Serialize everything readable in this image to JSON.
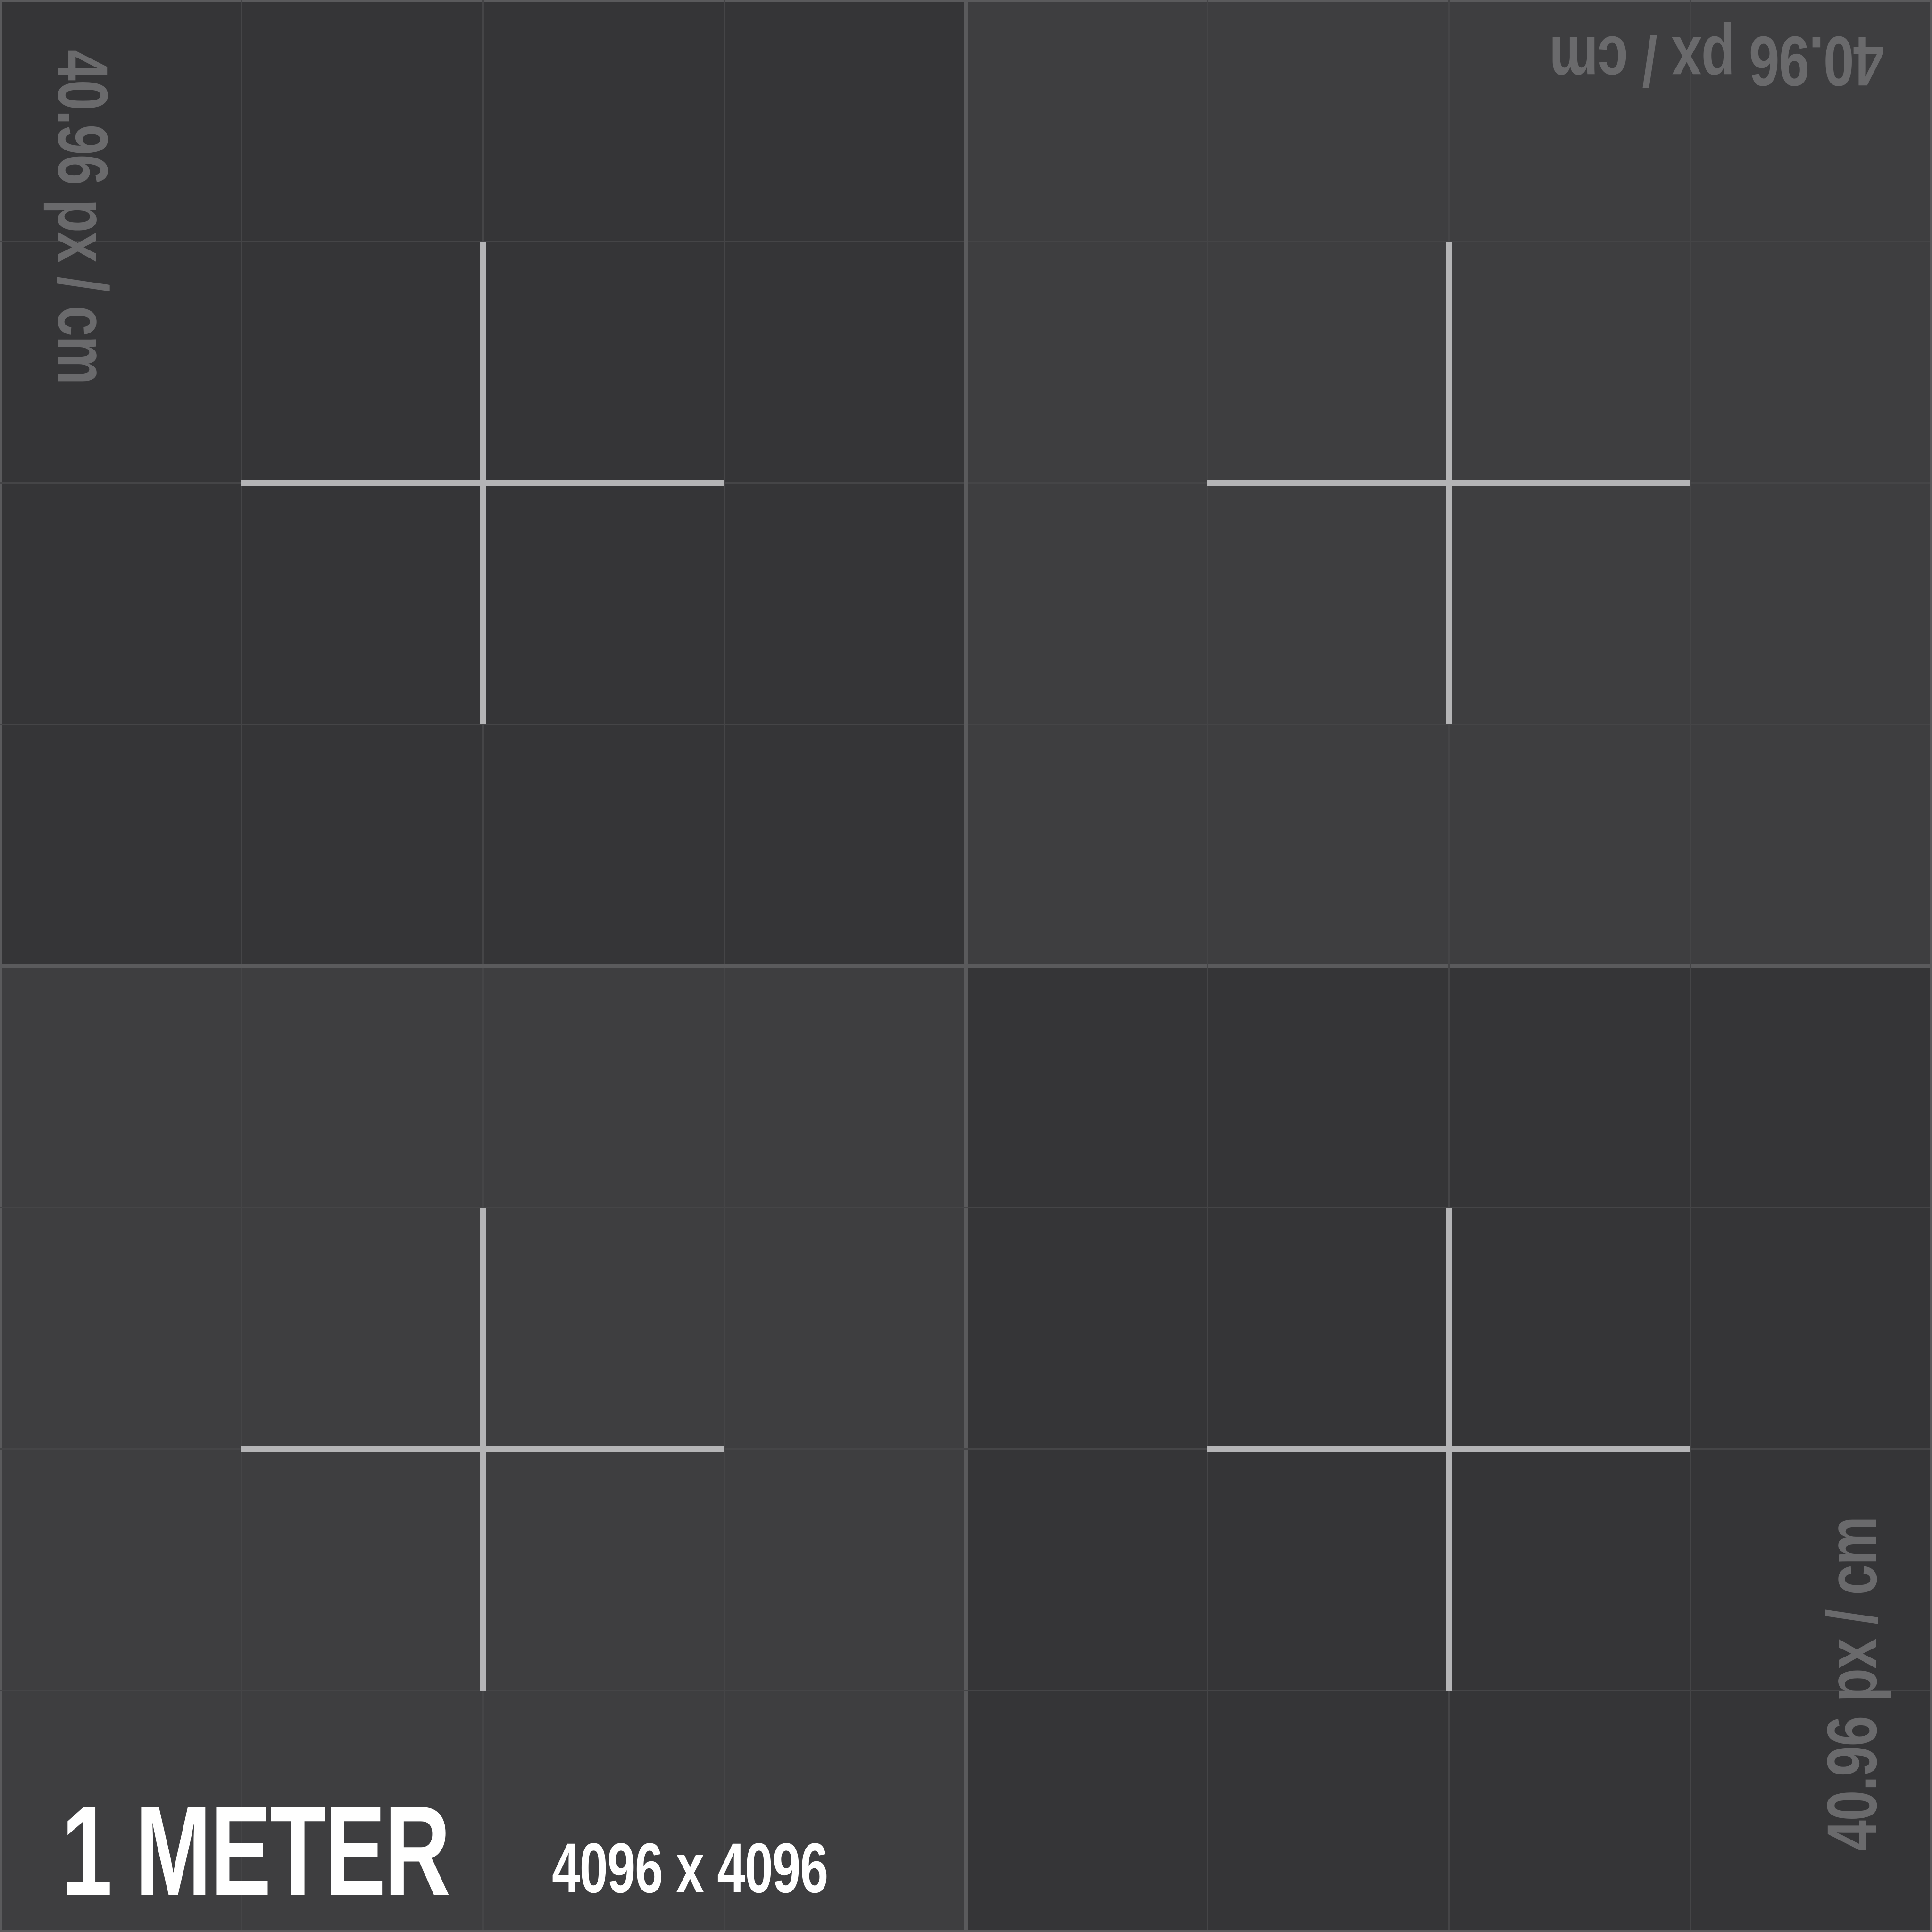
{
  "colors": {
    "quadrant_dark": "#353537",
    "quadrant_light": "#3e3e40",
    "grid_minor": "#454547",
    "grid_major": "#5a5a5c",
    "crosshair": "#b4b4b6",
    "scale_text": "#6a6a6c",
    "title_text": "#ffffff"
  },
  "labels": {
    "scale": "40.96 px / cm",
    "title": "1 METER",
    "size": "4096 x 4096"
  },
  "quadrants": [
    {
      "name": "top-left",
      "tone": "dark"
    },
    {
      "name": "top-right",
      "tone": "light"
    },
    {
      "name": "bottom-left",
      "tone": "light"
    },
    {
      "name": "bottom-right",
      "tone": "dark"
    }
  ],
  "crosshair_icon": "crosshair-plus"
}
